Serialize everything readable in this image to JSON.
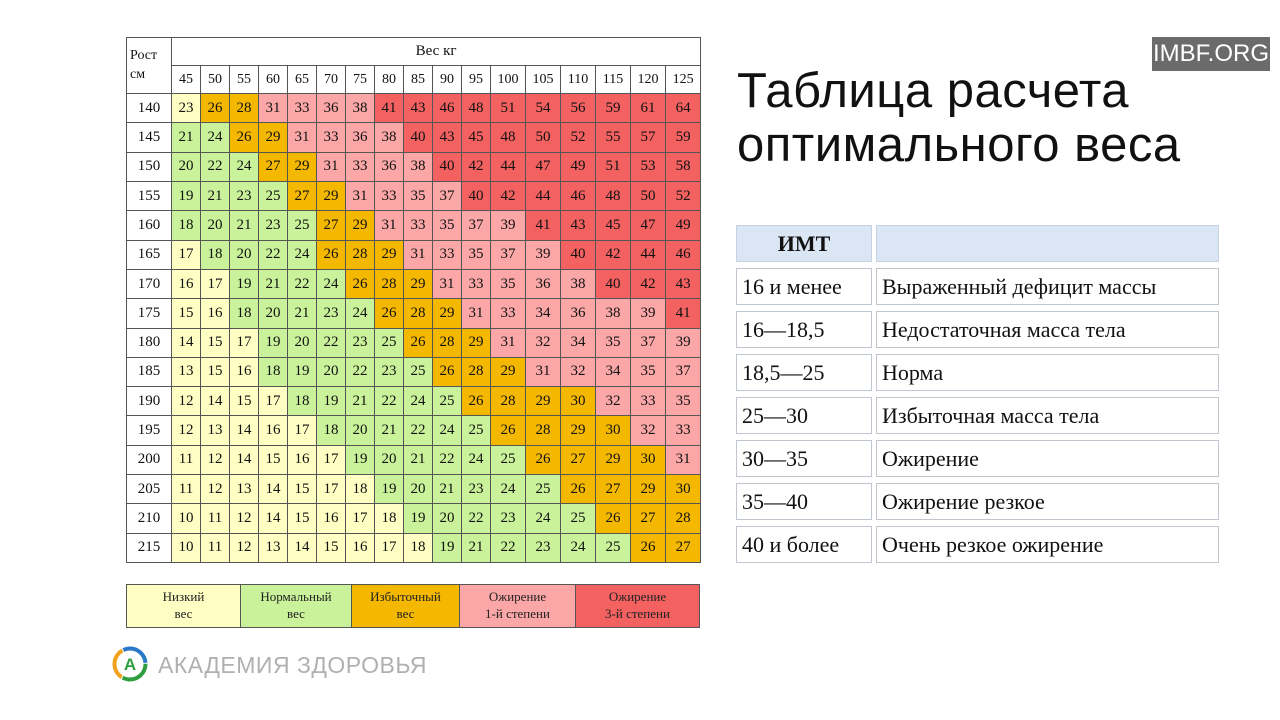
{
  "watermark": "IMBF.ORG",
  "title_line1": "Таблица расчета",
  "title_line2": "оптимального веса",
  "grid": {
    "corner_label_line1": "Рост",
    "corner_label_line2": "см",
    "weight_label": "Вес кг",
    "weights": [
      "45",
      "50",
      "55",
      "60",
      "65",
      "70",
      "75",
      "80",
      "85",
      "90",
      "95",
      "100",
      "105",
      "110",
      "115",
      "120",
      "125"
    ],
    "rows": [
      {
        "height": "140",
        "values": [
          "23",
          "26",
          "28",
          "31",
          "33",
          "36",
          "38",
          "41",
          "43",
          "46",
          "48",
          "51",
          "54",
          "56",
          "59",
          "61",
          "64"
        ],
        "zones": [
          1,
          3,
          3,
          4,
          4,
          4,
          4,
          5,
          5,
          5,
          5,
          5,
          5,
          5,
          5,
          5,
          5
        ]
      },
      {
        "height": "145",
        "values": [
          "21",
          "24",
          "26",
          "29",
          "31",
          "33",
          "36",
          "38",
          "40",
          "43",
          "45",
          "48",
          "50",
          "52",
          "55",
          "57",
          "59"
        ],
        "zones": [
          2,
          2,
          3,
          3,
          4,
          4,
          4,
          4,
          5,
          5,
          5,
          5,
          5,
          5,
          5,
          5,
          5
        ]
      },
      {
        "height": "150",
        "values": [
          "20",
          "22",
          "24",
          "27",
          "29",
          "31",
          "33",
          "36",
          "38",
          "40",
          "42",
          "44",
          "47",
          "49",
          "51",
          "53",
          "58"
        ],
        "zones": [
          2,
          2,
          2,
          3,
          3,
          4,
          4,
          4,
          4,
          5,
          5,
          5,
          5,
          5,
          5,
          5,
          5
        ]
      },
      {
        "height": "155",
        "values": [
          "19",
          "21",
          "23",
          "25",
          "27",
          "29",
          "31",
          "33",
          "35",
          "37",
          "40",
          "42",
          "44",
          "46",
          "48",
          "50",
          "52"
        ],
        "zones": [
          2,
          2,
          2,
          2,
          3,
          3,
          4,
          4,
          4,
          4,
          5,
          5,
          5,
          5,
          5,
          5,
          5
        ]
      },
      {
        "height": "160",
        "values": [
          "18",
          "20",
          "21",
          "23",
          "25",
          "27",
          "29",
          "31",
          "33",
          "35",
          "37",
          "39",
          "41",
          "43",
          "45",
          "47",
          "49"
        ],
        "zones": [
          2,
          2,
          2,
          2,
          2,
          3,
          3,
          4,
          4,
          4,
          4,
          4,
          5,
          5,
          5,
          5,
          5
        ]
      },
      {
        "height": "165",
        "values": [
          "17",
          "18",
          "20",
          "22",
          "24",
          "26",
          "28",
          "29",
          "31",
          "33",
          "35",
          "37",
          "39",
          "40",
          "42",
          "44",
          "46"
        ],
        "zones": [
          1,
          2,
          2,
          2,
          2,
          3,
          3,
          3,
          4,
          4,
          4,
          4,
          4,
          5,
          5,
          5,
          5
        ]
      },
      {
        "height": "170",
        "values": [
          "16",
          "17",
          "19",
          "21",
          "22",
          "24",
          "26",
          "28",
          "29",
          "31",
          "33",
          "35",
          "36",
          "38",
          "40",
          "42",
          "43"
        ],
        "zones": [
          1,
          1,
          2,
          2,
          2,
          2,
          3,
          3,
          3,
          4,
          4,
          4,
          4,
          4,
          5,
          5,
          5
        ]
      },
      {
        "height": "175",
        "values": [
          "15",
          "16",
          "18",
          "20",
          "21",
          "23",
          "24",
          "26",
          "28",
          "29",
          "31",
          "33",
          "34",
          "36",
          "38",
          "39",
          "41"
        ],
        "zones": [
          1,
          1,
          2,
          2,
          2,
          2,
          2,
          3,
          3,
          3,
          4,
          4,
          4,
          4,
          4,
          4,
          5
        ]
      },
      {
        "height": "180",
        "values": [
          "14",
          "15",
          "17",
          "19",
          "20",
          "22",
          "23",
          "25",
          "26",
          "28",
          "29",
          "31",
          "32",
          "34",
          "35",
          "37",
          "39"
        ],
        "zones": [
          1,
          1,
          1,
          2,
          2,
          2,
          2,
          2,
          3,
          3,
          3,
          4,
          4,
          4,
          4,
          4,
          4
        ]
      },
      {
        "height": "185",
        "values": [
          "13",
          "15",
          "16",
          "18",
          "19",
          "20",
          "22",
          "23",
          "25",
          "26",
          "28",
          "29",
          "31",
          "32",
          "34",
          "35",
          "37"
        ],
        "zones": [
          1,
          1,
          1,
          2,
          2,
          2,
          2,
          2,
          2,
          3,
          3,
          3,
          4,
          4,
          4,
          4,
          4
        ]
      },
      {
        "height": "190",
        "values": [
          "12",
          "14",
          "15",
          "17",
          "18",
          "19",
          "21",
          "22",
          "24",
          "25",
          "26",
          "28",
          "29",
          "30",
          "32",
          "33",
          "35"
        ],
        "zones": [
          1,
          1,
          1,
          1,
          2,
          2,
          2,
          2,
          2,
          2,
          3,
          3,
          3,
          3,
          4,
          4,
          4
        ]
      },
      {
        "height": "195",
        "values": [
          "12",
          "13",
          "14",
          "16",
          "17",
          "18",
          "20",
          "21",
          "22",
          "24",
          "25",
          "26",
          "28",
          "29",
          "30",
          "32",
          "33"
        ],
        "zones": [
          1,
          1,
          1,
          1,
          1,
          2,
          2,
          2,
          2,
          2,
          2,
          3,
          3,
          3,
          3,
          4,
          4
        ]
      },
      {
        "height": "200",
        "values": [
          "11",
          "12",
          "14",
          "15",
          "16",
          "17",
          "19",
          "20",
          "21",
          "22",
          "24",
          "25",
          "26",
          "27",
          "29",
          "30",
          "31"
        ],
        "zones": [
          1,
          1,
          1,
          1,
          1,
          1,
          2,
          2,
          2,
          2,
          2,
          2,
          3,
          3,
          3,
          3,
          4
        ]
      },
      {
        "height": "205",
        "values": [
          "11",
          "12",
          "13",
          "14",
          "15",
          "17",
          "18",
          "19",
          "20",
          "21",
          "23",
          "24",
          "25",
          "26",
          "27",
          "29",
          "30"
        ],
        "zones": [
          1,
          1,
          1,
          1,
          1,
          1,
          1,
          2,
          2,
          2,
          2,
          2,
          2,
          3,
          3,
          3,
          3
        ]
      },
      {
        "height": "210",
        "values": [
          "10",
          "11",
          "12",
          "14",
          "15",
          "16",
          "17",
          "18",
          "19",
          "20",
          "22",
          "23",
          "24",
          "25",
          "26",
          "27",
          "28"
        ],
        "zones": [
          1,
          1,
          1,
          1,
          1,
          1,
          1,
          1,
          2,
          2,
          2,
          2,
          2,
          2,
          3,
          3,
          3
        ]
      },
      {
        "height": "215",
        "values": [
          "10",
          "11",
          "12",
          "13",
          "14",
          "15",
          "16",
          "17",
          "18",
          "19",
          "21",
          "22",
          "23",
          "24",
          "25",
          "26",
          "27"
        ],
        "zones": [
          1,
          1,
          1,
          1,
          1,
          1,
          1,
          1,
          1,
          2,
          2,
          2,
          2,
          2,
          2,
          3,
          3
        ]
      }
    ]
  },
  "legend": [
    {
      "line1": "Низкий",
      "line2": "вес",
      "color": "#ffffc4"
    },
    {
      "line1": "Нормальный",
      "line2": "вес",
      "color": "#c9f29a"
    },
    {
      "line1": "Избыточный",
      "line2": "вес",
      "color": "#f5b800"
    },
    {
      "line1": "Ожирение",
      "line2": "1-й степени",
      "color": "#fba7a7"
    },
    {
      "line1": "Ожирение",
      "line2": "3-й степени",
      "color": "#f36161"
    }
  ],
  "logo_text": "АКАДЕМИЯ ЗДОРОВЬЯ",
  "imt_table": {
    "header_key": "ИМТ",
    "header_value": "",
    "rows": [
      {
        "range": "16 и менее",
        "desc": "Выраженный дефицит массы"
      },
      {
        "range": "16—18,5",
        "desc": "Недостаточная масса тела"
      },
      {
        "range": "18,5—25",
        "desc": "Норма"
      },
      {
        "range": "25—30",
        "desc": "Избыточная масса тела"
      },
      {
        "range": "30—35",
        "desc": "Ожирение"
      },
      {
        "range": "35—40",
        "desc": "Ожирение резкое"
      },
      {
        "range": "40 и более",
        "desc": "Очень резкое ожирение"
      }
    ]
  }
}
